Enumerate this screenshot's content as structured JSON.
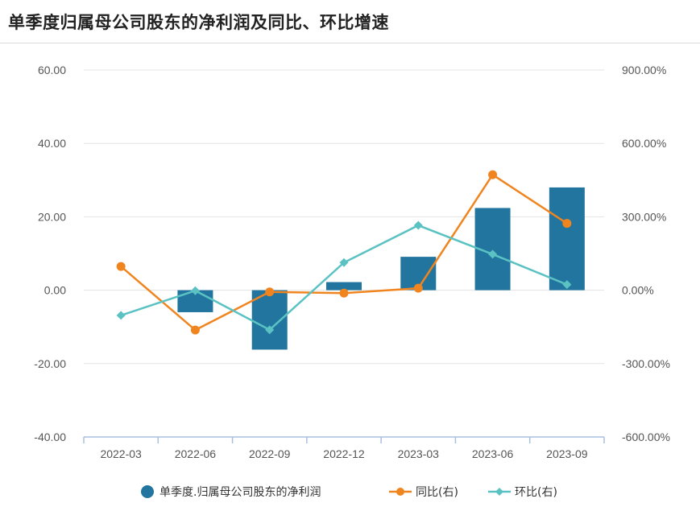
{
  "title": "单季度归属母公司股东的净利润及同比、环比增速",
  "chart_data": {
    "type": "bar",
    "categories": [
      "2022-03",
      "2022-06",
      "2022-09",
      "2022-12",
      "2023-03",
      "2023-06",
      "2023-09"
    ],
    "y_left": {
      "min": -40,
      "max": 60,
      "ticks": [
        "-40.00",
        "-20.00",
        "0.00",
        "20.00",
        "40.00",
        "60.00"
      ],
      "tick_values": [
        -40,
        -20,
        0,
        20,
        40,
        60
      ]
    },
    "y_right": {
      "min": -600,
      "max": 900,
      "ticks": [
        "-600.00%",
        "-300.00%",
        "0.00%",
        "300.00%",
        "600.00%",
        "900.00%"
      ],
      "tick_values": [
        -600,
        -300,
        0,
        300,
        600,
        900
      ]
    },
    "series": [
      {
        "name": "单季度.归属母公司股东的净利润",
        "type": "bar",
        "axis": "left",
        "color": "#22759f",
        "values": [
          null,
          -6,
          -16.2,
          2.2,
          9.1,
          22.4,
          28
        ]
      },
      {
        "name": "同比(右)",
        "type": "line",
        "axis": "right",
        "color": "#f0851f",
        "marker": "circle",
        "values": [
          97,
          -163,
          -7,
          -12,
          8,
          472,
          273
        ]
      },
      {
        "name": "环比(右)",
        "type": "line",
        "axis": "right",
        "color": "#5bc2c3",
        "marker": "diamond",
        "values": [
          -103,
          -2,
          -162,
          113,
          265,
          147,
          23
        ]
      }
    ],
    "grid": true,
    "legend_position": "bottom"
  }
}
